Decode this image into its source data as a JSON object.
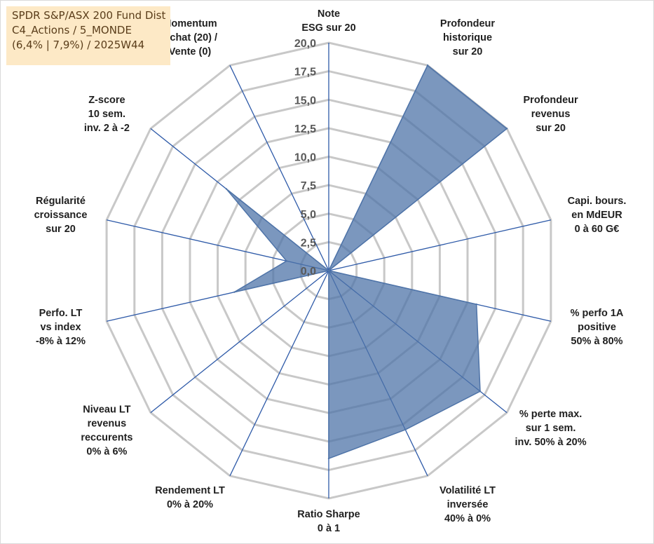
{
  "title": {
    "lines": [
      "SPDR S&P/ASX 200 Fund Dist",
      "C4_Actions / 5_MONDE",
      "(6,4% | 7,9%) / 2025W44"
    ]
  },
  "chart_data": {
    "type": "radar",
    "title": "SPDR S&P/ASX 200 Fund Dist",
    "subtitle": "C4_Actions / 5_MONDE (6,4% | 7,9%) / 2025W44",
    "rmin": 0,
    "rmax": 20,
    "tick_step": 2.5,
    "tick_labels": [
      "0,0",
      "2,5",
      "5,0",
      "7,5",
      "10,0",
      "12,5",
      "15,0",
      "17,5",
      "20,0"
    ],
    "axes": [
      {
        "label": [
          "Note",
          "ESG sur 20"
        ],
        "value": 0
      },
      {
        "label": [
          "Profondeur",
          "historique",
          "sur 20"
        ],
        "value": 20
      },
      {
        "label": [
          "Profondeur",
          "revenus",
          "sur 20"
        ],
        "value": 20
      },
      {
        "label": [
          "Capi. bours.",
          "en MdEUR",
          "0 à 60 G€"
        ],
        "value": 0
      },
      {
        "label": [
          "% perfo 1A",
          "positive",
          "50% à 80%"
        ],
        "value": 13.3
      },
      {
        "label": [
          "% perte max.",
          "sur 1 sem.",
          "inv. 50% à 20%"
        ],
        "value": 17
      },
      {
        "label": [
          "Volatilité LT",
          "inversée",
          "40% à 0%"
        ],
        "value": 15.5
      },
      {
        "label": [
          "Ratio Sharpe",
          "0 à 1"
        ],
        "value": 16.5
      },
      {
        "label": [
          "Rendement LT",
          "0% à 20%"
        ],
        "value": 0
      },
      {
        "label": [
          "Niveau LT",
          "revenus",
          "reccurents",
          "0% à 6%"
        ],
        "value": 0
      },
      {
        "label": [
          "Perfo. LT",
          "vs index",
          "-8% à 12%"
        ],
        "value": 8.5
      },
      {
        "label": [
          "Régularité",
          "croissance",
          "sur 20"
        ],
        "value": 3.8
      },
      {
        "label": [
          "Z-score",
          "10 sem.",
          "inv. 2 à -2"
        ],
        "value": 11.5
      },
      {
        "label": [
          "Momentum",
          "Achat (20) /",
          "Vente (0)"
        ],
        "value": 0
      }
    ],
    "series": [
      {
        "name": "SPDR S&P/ASX 200 Fund Dist",
        "color": "#4f74a8"
      }
    ]
  },
  "colors": {
    "grid": "#c8c8c8",
    "axis_line": "#2e5aa8",
    "fill": "#4f74a8",
    "title_bg": "#fde9c6"
  }
}
